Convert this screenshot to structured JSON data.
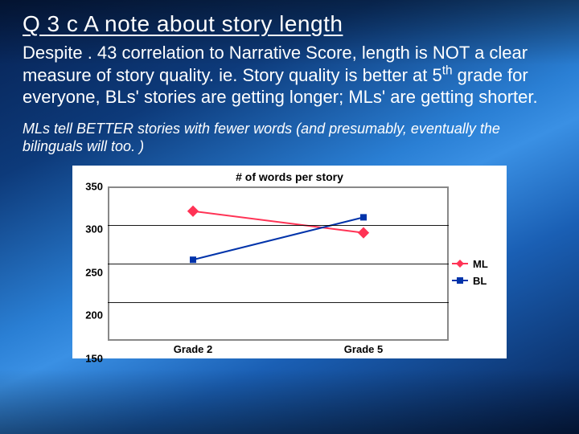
{
  "slide": {
    "title": "Q 3 c A note about story length",
    "para1_parts": [
      "Despite . 43 correlation to Narrative Score, length is NOT a clear measure of story quality.  ie. Story quality is better at 5",
      "th",
      " grade for everyone, BLs' stories are getting longer; MLs' are getting shorter."
    ],
    "para2": "MLs tell BETTER stories with fewer words (and presumably, eventually the bilinguals will too. )"
  },
  "chart": {
    "type": "line",
    "title": "# of words per story",
    "title_fontsize": 14,
    "title_fontweight": 700,
    "background_color": "#ffffff",
    "axis_color": "#888888",
    "grid_color": "#000000",
    "grid_on": true,
    "x": {
      "categories": [
        "Grade 2",
        "Grade 5"
      ],
      "positions_pct": [
        25,
        75
      ],
      "label_fontsize": 13,
      "label_fontweight": 700
    },
    "y": {
      "min": 150,
      "max": 350,
      "tick_step": 50,
      "ticks": [
        150,
        200,
        250,
        300,
        350
      ],
      "label_fontsize": 13,
      "label_fontweight": 700
    },
    "series": [
      {
        "name": "ML",
        "color": "#ff3355",
        "line_width": 2,
        "marker": "diamond",
        "marker_size": 10,
        "values": [
          318,
          290
        ]
      },
      {
        "name": "BL",
        "color": "#0033aa",
        "line_width": 2,
        "marker": "square",
        "marker_size": 8,
        "values": [
          255,
          310
        ]
      }
    ],
    "legend": {
      "position": "right",
      "fontsize": 13,
      "fontweight": 700
    }
  }
}
